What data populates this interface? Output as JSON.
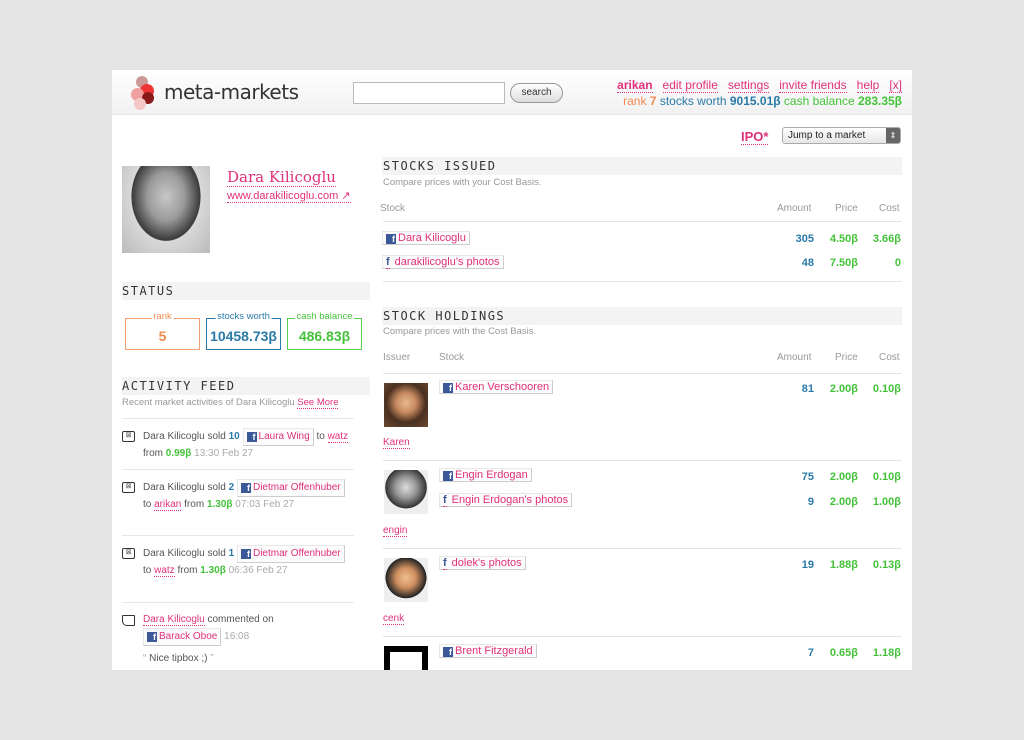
{
  "header": {
    "brand": "meta-markets",
    "search_value": "",
    "search_button": "search",
    "nav": [
      "arikan",
      "edit profile",
      "settings",
      "invite friends",
      "help",
      "[x]"
    ],
    "status": {
      "rank_label": "rank",
      "rank": "7",
      "stocks_label": "stocks worth",
      "stocks": "9015.01β",
      "cash_label": "cash balance",
      "cash": "283.35β"
    }
  },
  "toolbar": {
    "ipo": "IPO*",
    "jump": "Jump to a market"
  },
  "profile": {
    "name": "Dara Kilicoglu",
    "url": "www.darakilicoglu.com"
  },
  "status": {
    "title": "STATUS",
    "rank_label": "rank",
    "rank": "5",
    "stocks_label": "stocks worth",
    "stocks": "10458.73β",
    "cash_label": "cash balance",
    "cash": "486.83β"
  },
  "feed": {
    "title": "ACTIVITY FEED",
    "subtitle": "Recent market activities of Dara Kilicoglu",
    "see_more": "See More",
    "items": [
      {
        "actor": "Dara Kilicoglu",
        "verb": "sold",
        "qty": "10",
        "stock": "Laura Wing",
        "to": "to",
        "buyer": "watz",
        "from": "from",
        "price": "0.99β",
        "time": "13:30 Feb 27"
      },
      {
        "actor": "Dara Kilicoglu",
        "verb": "sold",
        "qty": "2",
        "stock": "Dietmar Offenhuber",
        "to": "to",
        "buyer": "arikan",
        "from": "from",
        "price": "1.30β",
        "time": "07:03 Feb 27"
      },
      {
        "actor": "Dara Kilicoglu",
        "verb": "sold",
        "qty": "1",
        "stock": "Dietmar Offenhuber",
        "to": "to",
        "buyer": "watz",
        "from": "from",
        "price": "1.30β",
        "time": "06:36 Feb 27"
      }
    ],
    "comment": {
      "actor": "Dara Kilicoglu",
      "verb": "commented on",
      "stock": "Barack Oboe",
      "time": "16:08",
      "text": "Nice tipbox ;)"
    }
  },
  "issued": {
    "title": "STOCKS ISSUED",
    "subtitle": "Compare prices with your Cost Basis.",
    "cols": [
      "Stock",
      "Amount",
      "Price",
      "Cost"
    ],
    "rows": [
      {
        "stock": "Dara Kilicoglu",
        "type": "facebook",
        "amount": "305",
        "price": "4.50β",
        "cost": "3.66β"
      },
      {
        "stock": "darakilicoglu's photos",
        "type": "photos",
        "amount": "48",
        "price": "7.50β",
        "cost": "0"
      }
    ]
  },
  "holdings": {
    "title": "STOCK HOLDINGS",
    "subtitle": "Compare prices with the Cost Basis.",
    "cols": [
      "Issuer",
      "Stock",
      "Amount",
      "Price",
      "Cost"
    ],
    "groups": [
      {
        "issuer": "Karen",
        "rows": [
          {
            "stock": "Karen Verschooren",
            "type": "facebook",
            "amount": "81",
            "price": "2.00β",
            "cost": "0.10β"
          }
        ]
      },
      {
        "issuer": "engin",
        "rows": [
          {
            "stock": "Engin Erdogan",
            "type": "facebook",
            "amount": "75",
            "price": "2.00β",
            "cost": "0.10β"
          },
          {
            "stock": "Engin Erdogan's photos",
            "type": "photos",
            "amount": "9",
            "price": "2.00β",
            "cost": "1.00β"
          }
        ]
      },
      {
        "issuer": "cenk",
        "rows": [
          {
            "stock": "dolek's photos",
            "type": "photos",
            "amount": "19",
            "price": "1.88β",
            "cost": "0.13β"
          }
        ]
      },
      {
        "issuer": "",
        "rows": [
          {
            "stock": "Brent Fitzgerald",
            "type": "facebook",
            "amount": "7",
            "price": "0.65β",
            "cost": "1.18β"
          }
        ]
      }
    ]
  },
  "colors": {
    "pink": "#e0307a",
    "blue": "#2a7aa8",
    "green": "#44c23a",
    "orange": "#f08a50"
  }
}
